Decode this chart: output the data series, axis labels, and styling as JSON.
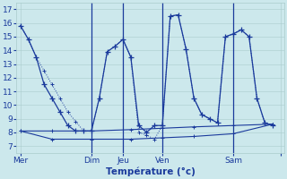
{
  "xlabel": "Température (°c)",
  "background_color": "#cce8ec",
  "grid_color": "#aacccc",
  "line_color": "#1a3a9c",
  "ylim": [
    6.5,
    17.5
  ],
  "yticks": [
    7,
    8,
    9,
    10,
    11,
    12,
    13,
    14,
    15,
    16,
    17
  ],
  "xlim": [
    -0.5,
    33.5
  ],
  "day_tick_pos": [
    0,
    9,
    13,
    18,
    27,
    33
  ],
  "day_labels": [
    "Mer",
    "Dim",
    "Jeu",
    "Ven",
    "Sam",
    ""
  ],
  "vline_pos": [
    9,
    13,
    18,
    27
  ],
  "series1_x": [
    0,
    1,
    2,
    3,
    4,
    5,
    6,
    7,
    8,
    9,
    10,
    11,
    12,
    13,
    14,
    15,
    16,
    17,
    18,
    19,
    20,
    21,
    22,
    23,
    24,
    25,
    26,
    27,
    28,
    29,
    30,
    31,
    32
  ],
  "series1_y": [
    15.8,
    14.8,
    13.5,
    11.5,
    10.5,
    9.5,
    8.5,
    8.1,
    8.1,
    8.1,
    10.5,
    13.9,
    14.3,
    14.8,
    13.5,
    8.5,
    8.0,
    8.5,
    8.5,
    16.5,
    16.6,
    14.1,
    10.5,
    9.3,
    9.0,
    8.7,
    15.0,
    15.2,
    15.5,
    15.0,
    10.5,
    8.7,
    8.5
  ],
  "series2_x": [
    0,
    1,
    2,
    3,
    4,
    5,
    6,
    7,
    8,
    9,
    10,
    11,
    12,
    13,
    14,
    15,
    16,
    17,
    18,
    19,
    20,
    21,
    22,
    23,
    24,
    25,
    26,
    27,
    28,
    29,
    30,
    31,
    32
  ],
  "series2_y": [
    15.8,
    14.8,
    13.5,
    12.5,
    11.5,
    10.5,
    9.5,
    8.8,
    8.1,
    8.1,
    10.5,
    13.9,
    14.3,
    14.8,
    13.5,
    8.0,
    7.8,
    7.5,
    8.5,
    16.5,
    16.6,
    14.1,
    10.5,
    9.3,
    9.0,
    8.7,
    15.0,
    15.2,
    15.5,
    15.0,
    10.5,
    8.7,
    8.5
  ],
  "series3_x": [
    0,
    4,
    9,
    14,
    18,
    22,
    27,
    32
  ],
  "series3_y": [
    8.1,
    8.1,
    8.1,
    8.2,
    8.3,
    8.4,
    8.5,
    8.6
  ],
  "series4_x": [
    0,
    4,
    9,
    14,
    18,
    22,
    27,
    32
  ],
  "series4_y": [
    8.1,
    7.5,
    7.5,
    7.5,
    7.6,
    7.7,
    7.9,
    8.6
  ]
}
